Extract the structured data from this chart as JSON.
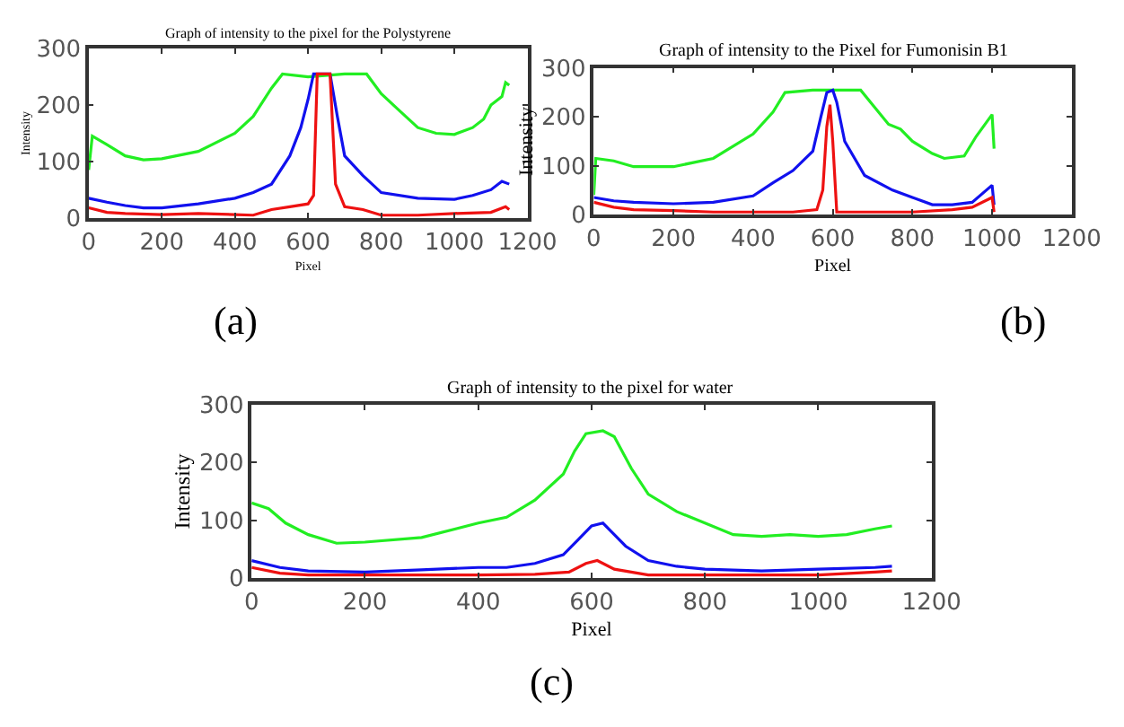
{
  "chart_data": [
    {
      "type": "line",
      "title": "Graph of intensity to the pixel for the Polystyrene",
      "xlabel": "Pixel",
      "ylabel": "Intensity",
      "xlim": [
        0,
        1200
      ],
      "ylim": [
        0,
        300
      ],
      "xticks": [
        0,
        200,
        400,
        600,
        800,
        1000,
        1200
      ],
      "yticks": [
        0,
        100,
        200,
        300
      ],
      "annotations": [
        "(a)"
      ],
      "series": [
        {
          "color": "#22ee22",
          "x": [
            0,
            10,
            50,
            100,
            150,
            200,
            300,
            400,
            450,
            500,
            530,
            600,
            700,
            760,
            800,
            850,
            900,
            950,
            1000,
            1050,
            1080,
            1100,
            1130,
            1140,
            1150
          ],
          "values": [
            85,
            145,
            130,
            110,
            103,
            105,
            118,
            150,
            180,
            230,
            255,
            250,
            255,
            255,
            220,
            190,
            160,
            150,
            148,
            160,
            175,
            200,
            215,
            240,
            235
          ]
        },
        {
          "color": "#1111ee",
          "x": [
            0,
            50,
            100,
            150,
            200,
            300,
            400,
            450,
            500,
            550,
            580,
            600,
            615,
            660,
            680,
            700,
            750,
            800,
            900,
            1000,
            1050,
            1100,
            1130,
            1150
          ],
          "values": [
            35,
            28,
            22,
            18,
            18,
            25,
            35,
            45,
            60,
            110,
            160,
            210,
            255,
            255,
            180,
            110,
            75,
            45,
            35,
            33,
            40,
            50,
            65,
            60
          ]
        },
        {
          "color": "#ee1111",
          "x": [
            0,
            50,
            100,
            200,
            300,
            400,
            450,
            500,
            550,
            600,
            615,
            625,
            660,
            675,
            700,
            750,
            800,
            900,
            1000,
            1100,
            1140,
            1150
          ],
          "values": [
            18,
            10,
            8,
            6,
            8,
            6,
            5,
            15,
            20,
            25,
            40,
            255,
            255,
            60,
            20,
            15,
            5,
            5,
            8,
            10,
            20,
            15
          ]
        }
      ]
    },
    {
      "type": "line",
      "title": "Graph of intensity to the Pixel for Fumonisin B1",
      "xlabel": "Pixel",
      "ylabel": "Intensity",
      "xlim": [
        0,
        1200
      ],
      "ylim": [
        0,
        300
      ],
      "xticks": [
        0,
        200,
        400,
        600,
        800,
        1000,
        1200
      ],
      "yticks": [
        0,
        100,
        200,
        300
      ],
      "annotations": [
        "(b)"
      ],
      "series": [
        {
          "color": "#22ee22",
          "x": [
            0,
            5,
            50,
            100,
            200,
            300,
            350,
            400,
            450,
            480,
            550,
            670,
            700,
            740,
            770,
            800,
            850,
            880,
            930,
            960,
            1000,
            1005
          ],
          "values": [
            40,
            115,
            110,
            98,
            98,
            115,
            140,
            165,
            210,
            250,
            255,
            255,
            225,
            185,
            175,
            150,
            125,
            115,
            120,
            160,
            205,
            135
          ]
        },
        {
          "color": "#1111ee",
          "x": [
            0,
            50,
            100,
            200,
            300,
            400,
            450,
            500,
            550,
            570,
            585,
            600,
            610,
            630,
            680,
            750,
            800,
            850,
            900,
            950,
            1000,
            1005
          ],
          "values": [
            35,
            28,
            25,
            22,
            25,
            38,
            65,
            90,
            130,
            200,
            250,
            255,
            230,
            150,
            80,
            50,
            35,
            20,
            20,
            25,
            60,
            20
          ]
        },
        {
          "color": "#ee1111",
          "x": [
            0,
            50,
            100,
            200,
            300,
            400,
            500,
            560,
            575,
            585,
            593,
            600,
            610,
            700,
            800,
            900,
            950,
            1000,
            1005
          ],
          "values": [
            25,
            15,
            10,
            8,
            5,
            5,
            5,
            10,
            50,
            180,
            225,
            150,
            5,
            5,
            5,
            10,
            15,
            35,
            5
          ]
        }
      ]
    },
    {
      "type": "line",
      "title": "Graph of intensity to the pixel for water",
      "xlabel": "Pixel",
      "ylabel": "Intensity",
      "xlim": [
        0,
        1200
      ],
      "ylim": [
        0,
        300
      ],
      "xticks": [
        0,
        200,
        400,
        600,
        800,
        1000,
        1200
      ],
      "yticks": [
        0,
        100,
        200,
        300
      ],
      "annotations": [
        "(c)"
      ],
      "series": [
        {
          "color": "#22ee22",
          "x": [
            0,
            30,
            60,
            100,
            150,
            200,
            300,
            400,
            450,
            500,
            550,
            570,
            590,
            620,
            640,
            670,
            700,
            750,
            800,
            850,
            900,
            950,
            1000,
            1050,
            1100,
            1130
          ],
          "values": [
            130,
            120,
            95,
            75,
            60,
            62,
            70,
            95,
            105,
            135,
            180,
            220,
            250,
            255,
            245,
            190,
            145,
            115,
            95,
            75,
            72,
            75,
            72,
            75,
            85,
            90
          ]
        },
        {
          "color": "#1111ee",
          "x": [
            0,
            50,
            100,
            200,
            300,
            400,
            450,
            500,
            550,
            575,
            600,
            620,
            640,
            660,
            700,
            750,
            800,
            900,
            1000,
            1100,
            1130
          ],
          "values": [
            30,
            18,
            12,
            10,
            14,
            18,
            18,
            25,
            40,
            65,
            90,
            95,
            75,
            55,
            30,
            20,
            15,
            12,
            15,
            18,
            20
          ]
        },
        {
          "color": "#ee1111",
          "x": [
            0,
            50,
            100,
            300,
            400,
            500,
            560,
            590,
            610,
            640,
            700,
            800,
            900,
            1000,
            1100,
            1130
          ],
          "values": [
            18,
            8,
            5,
            5,
            5,
            6,
            10,
            25,
            30,
            15,
            5,
            5,
            5,
            5,
            10,
            12
          ]
        }
      ]
    }
  ]
}
